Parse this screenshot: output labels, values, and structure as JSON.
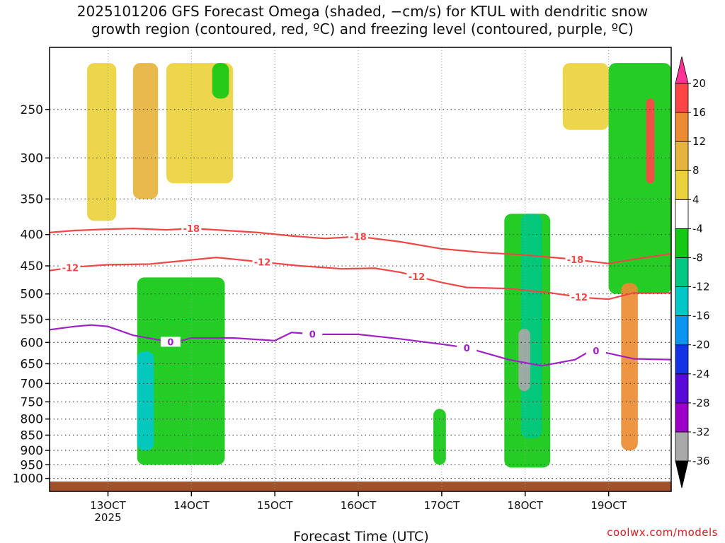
{
  "title_line1": "2025101206 GFS Forecast Omega (shaded, −cm/s) for KTUL with dendritic snow",
  "title_line2": "growth region (contoured, red, ºC) and freezing level (contoured, purple, ºC)",
  "credit": "coolwx.com/models",
  "chart_data": {
    "type": "heatmap",
    "title": "2025101206 GFS Forecast Omega (shaded, −cm/s) for KTUL with dendritic snow growth region (contoured, red, ºC) and freezing level (contoured, purple, ºC)",
    "xlabel": "Forecast Time (UTC)",
    "ylabel": "",
    "x_range_days": [
      12.3,
      19.75
    ],
    "y_axis": "pressure (hPa), log scale, inverted",
    "y_range": [
      200,
      1050
    ],
    "x_ticks": [
      {
        "label": "13OCT",
        "sub": "2025",
        "x": 13.0
      },
      {
        "label": "14OCT",
        "sub": "",
        "x": 14.0
      },
      {
        "label": "15OCT",
        "sub": "",
        "x": 15.0
      },
      {
        "label": "16OCT",
        "sub": "",
        "x": 16.0
      },
      {
        "label": "17OCT",
        "sub": "",
        "x": 17.0
      },
      {
        "label": "18OCT",
        "sub": "",
        "x": 18.0
      },
      {
        "label": "19OCT",
        "sub": "",
        "x": 19.0
      }
    ],
    "y_ticks": [
      250,
      300,
      350,
      400,
      450,
      500,
      550,
      600,
      650,
      700,
      750,
      800,
      850,
      900,
      950,
      1000
    ],
    "colorbar": {
      "levels": [
        -36,
        -32,
        -28,
        -24,
        -20,
        -16,
        -12,
        -8,
        -4,
        4,
        8,
        12,
        16,
        20
      ],
      "labels": [
        "-36",
        "-32",
        "-28",
        "-24",
        "-20",
        "-16",
        "-12",
        "-8",
        "-4",
        "4",
        "8",
        "12",
        "16",
        "20"
      ],
      "colors": [
        "#000000",
        "#a8a8a8",
        "#9c00c8",
        "#5a0ad8",
        "#1432e6",
        "#0a96f0",
        "#00c8c8",
        "#00c882",
        "#14c814",
        "#ffffff",
        "#ebd23c",
        "#e6b43c",
        "#ec8c32",
        "#ff4646",
        "#ff3296"
      ]
    },
    "contours": [
      {
        "name": "dgz-top",
        "label": "-18",
        "color": "#f04646",
        "points": [
          [
            12.3,
            397
          ],
          [
            12.6,
            394
          ],
          [
            13.0,
            392
          ],
          [
            13.3,
            391
          ],
          [
            13.7,
            393
          ],
          [
            14.0,
            391
          ],
          [
            14.3,
            393
          ],
          [
            14.8,
            397
          ],
          [
            15.2,
            402
          ],
          [
            15.6,
            406
          ],
          [
            16.0,
            403
          ],
          [
            16.5,
            411
          ],
          [
            17.0,
            422
          ],
          [
            17.5,
            428
          ],
          [
            18.0,
            432
          ],
          [
            18.5,
            438
          ],
          [
            19.0,
            446
          ],
          [
            19.4,
            437
          ],
          [
            19.75,
            430
          ]
        ],
        "label_x": [
          14.0,
          16.0,
          18.6
        ]
      },
      {
        "name": "dgz-bottom",
        "label": "-12",
        "color": "#f04646",
        "points": [
          [
            12.3,
            458
          ],
          [
            12.6,
            452
          ],
          [
            13.0,
            448
          ],
          [
            13.5,
            447
          ],
          [
            14.0,
            440
          ],
          [
            14.3,
            436
          ],
          [
            14.8,
            443
          ],
          [
            15.3,
            450
          ],
          [
            15.8,
            455
          ],
          [
            16.2,
            454
          ],
          [
            16.5,
            461
          ],
          [
            17.0,
            479
          ],
          [
            17.3,
            488
          ],
          [
            17.8,
            490
          ],
          [
            18.3,
            498
          ],
          [
            18.7,
            507
          ],
          [
            19.0,
            510
          ],
          [
            19.3,
            498
          ],
          [
            19.75,
            498
          ]
        ],
        "label_x": [
          12.55,
          14.85,
          16.7,
          18.65
        ]
      },
      {
        "name": "freezing-level",
        "label": "0",
        "color": "#a020c8",
        "points": [
          [
            12.3,
            572
          ],
          [
            12.6,
            565
          ],
          [
            12.8,
            562
          ],
          [
            13.0,
            565
          ],
          [
            13.3,
            584
          ],
          [
            13.6,
            594
          ],
          [
            13.8,
            600
          ],
          [
            14.0,
            590
          ],
          [
            14.5,
            590
          ],
          [
            15.0,
            596
          ],
          [
            15.2,
            578
          ],
          [
            15.5,
            582
          ],
          [
            16.0,
            582
          ],
          [
            16.5,
            592
          ],
          [
            17.0,
            604
          ],
          [
            17.3,
            612
          ],
          [
            17.8,
            640
          ],
          [
            18.2,
            655
          ],
          [
            18.6,
            640
          ],
          [
            18.8,
            617
          ],
          [
            19.0,
            625
          ],
          [
            19.3,
            638
          ],
          [
            19.75,
            640
          ]
        ],
        "label_x": [
          13.75,
          15.45,
          17.3,
          18.85
        ]
      }
    ],
    "ground": {
      "top_hpa": 1012,
      "color": "#a0522d"
    },
    "omega_features": [
      {
        "level": 4,
        "x": [
          12.75,
          13.1
        ],
        "p": [
          210,
          380
        ]
      },
      {
        "level": 8,
        "x": [
          13.3,
          13.6
        ],
        "p": [
          210,
          350
        ]
      },
      {
        "level": 4,
        "x": [
          13.7,
          14.5
        ],
        "p": [
          210,
          330
        ]
      },
      {
        "level": -8,
        "x": [
          14.25,
          14.45
        ],
        "p": [
          210,
          240
        ]
      },
      {
        "level": -8,
        "x": [
          13.35,
          14.4
        ],
        "p": [
          470,
          950
        ]
      },
      {
        "level": -16,
        "x": [
          13.35,
          13.55
        ],
        "p": [
          620,
          900
        ]
      },
      {
        "level": -8,
        "x": [
          16.9,
          17.05
        ],
        "p": [
          770,
          950
        ]
      },
      {
        "level": -8,
        "x": [
          17.75,
          18.3
        ],
        "p": [
          370,
          960
        ]
      },
      {
        "level": -12,
        "x": [
          17.95,
          18.2
        ],
        "p": [
          370,
          860
        ]
      },
      {
        "level": -36,
        "x": [
          17.92,
          18.06
        ],
        "p": [
          570,
          720
        ]
      },
      {
        "level": -8,
        "x": [
          19.0,
          19.75
        ],
        "p": [
          210,
          500
        ]
      },
      {
        "level": 12,
        "x": [
          19.15,
          19.35
        ],
        "p": [
          480,
          900
        ]
      },
      {
        "level": 16,
        "x": [
          19.45,
          19.55
        ],
        "p": [
          240,
          330
        ]
      },
      {
        "level": 4,
        "x": [
          18.45,
          19.0
        ],
        "p": [
          210,
          270
        ]
      }
    ]
  }
}
